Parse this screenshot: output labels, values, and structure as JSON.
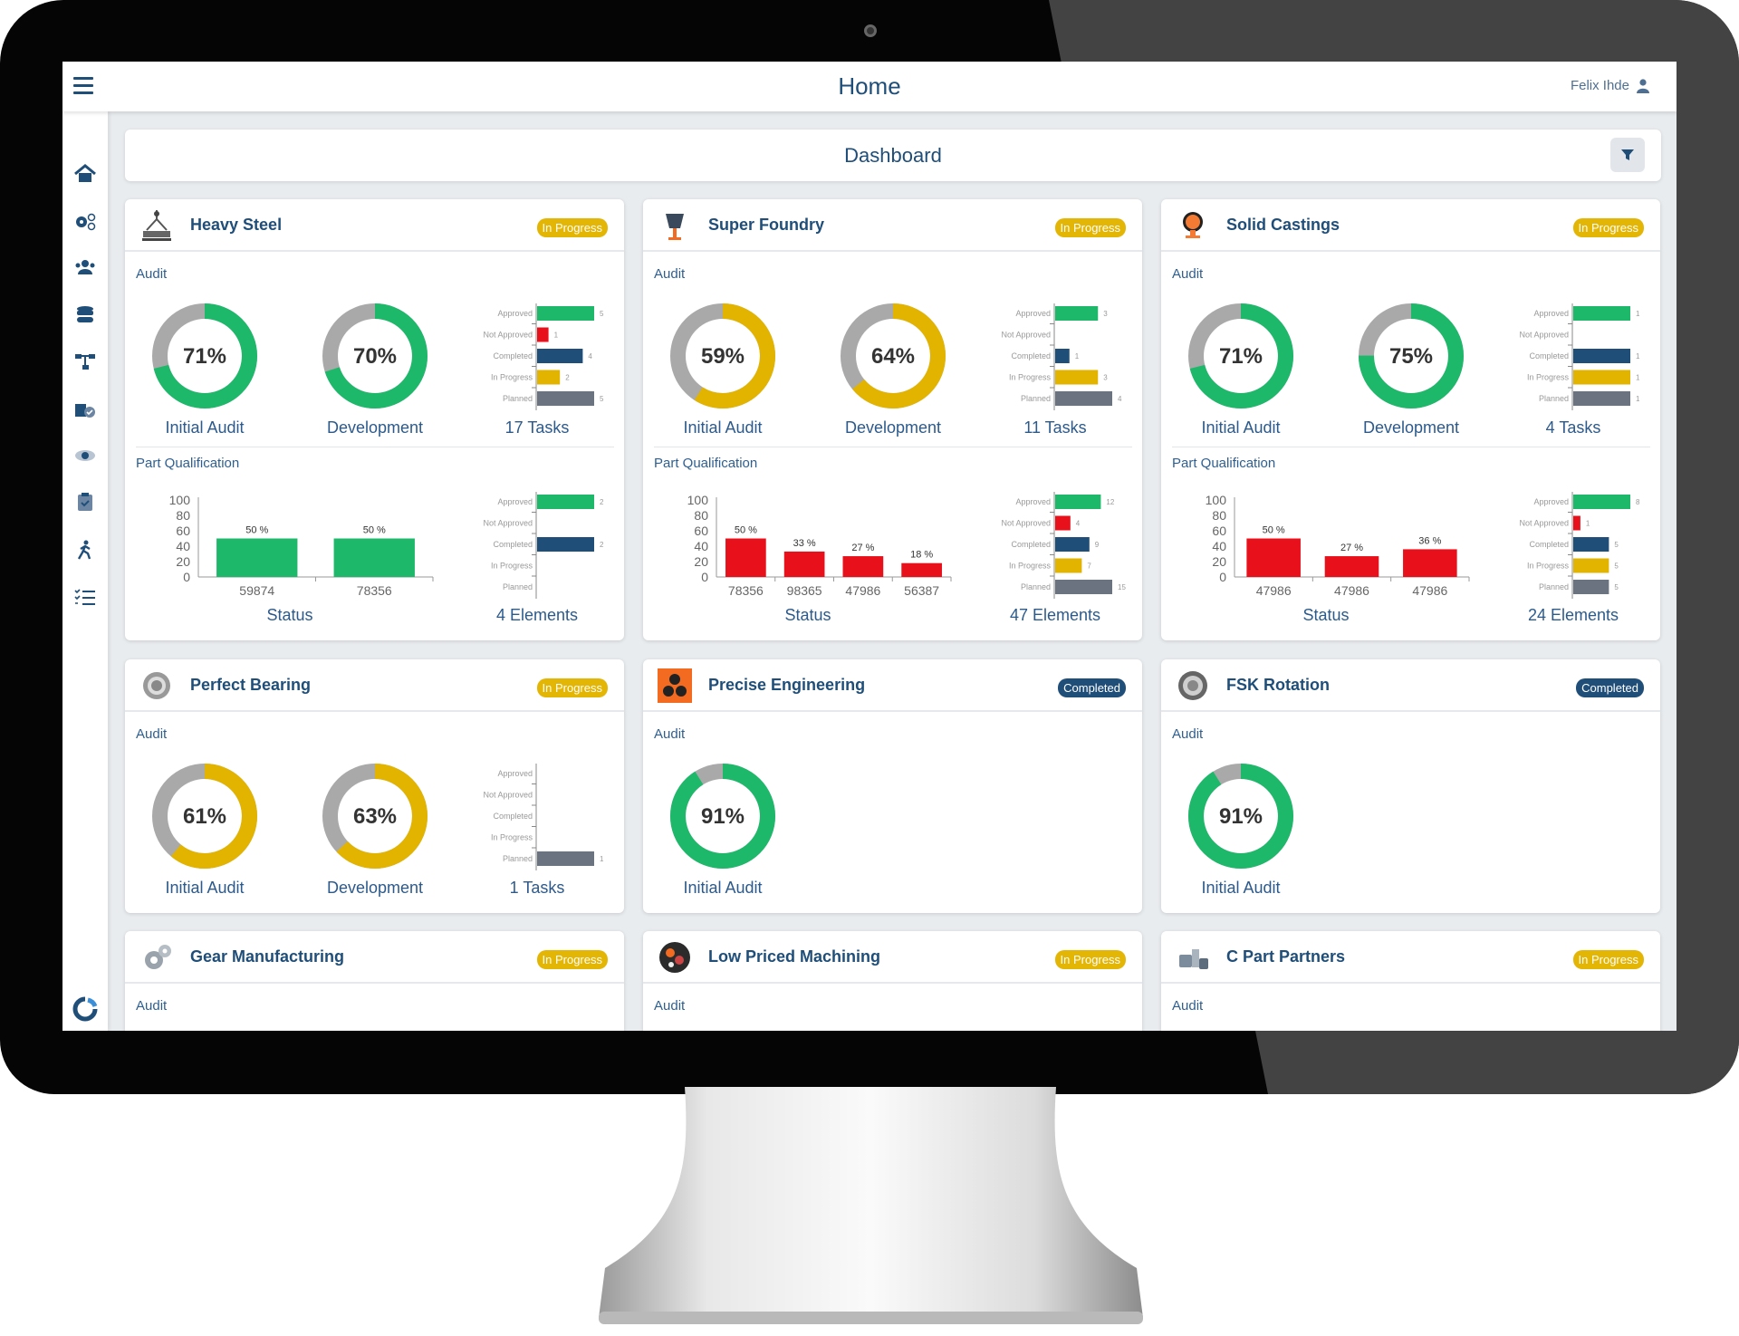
{
  "header": {
    "title": "Home",
    "user_name": "Felix Ihde",
    "menu_icon": "hamburger-icon",
    "user_icon": "user-icon"
  },
  "sidebar": {
    "items": [
      {
        "icon": "home-icon"
      },
      {
        "icon": "settings-gears-icon"
      },
      {
        "icon": "users-icon"
      },
      {
        "icon": "database-icon"
      },
      {
        "icon": "hierarchy-icon"
      },
      {
        "icon": "approved-parts-icon"
      },
      {
        "icon": "eye-icon"
      },
      {
        "icon": "clipboard-check-icon"
      },
      {
        "icon": "person-walking-icon"
      },
      {
        "icon": "checklist-icon"
      }
    ],
    "logo_icon": "app-logo-icon"
  },
  "dashboard": {
    "title": "Dashboard",
    "filter_icon": "filter-icon"
  },
  "colors": {
    "green": "#1db86a",
    "yellow": "#e2b400",
    "red": "#e8101a",
    "navy": "#1f4e79",
    "gray": "#6b7380",
    "track": "#a9a9a9",
    "in_progress_badge": "#e3b505",
    "completed_badge": "#1f4e79"
  },
  "task_categories": [
    "Approved",
    "Not Approved",
    "Completed",
    "In Progress",
    "Planned"
  ],
  "cards": [
    {
      "title": "Heavy Steel",
      "icon": "crane-icon",
      "status": "In Progress",
      "audit_label": "Audit",
      "donuts": [
        {
          "label": "Initial Audit",
          "percent": 71,
          "color": "green"
        },
        {
          "label": "Development",
          "percent": 70,
          "color": "green"
        }
      ],
      "tasks": {
        "label": "17 Tasks",
        "values": [
          5,
          1,
          4,
          2,
          5
        ]
      },
      "part_qualification": {
        "label": "Part Qualification",
        "status_label": "Status",
        "bar_color": "green",
        "y_ticks": [
          100,
          80,
          60,
          40,
          20,
          0
        ],
        "bars": [
          {
            "category": "59874",
            "value": 50
          },
          {
            "category": "78356",
            "value": 50
          }
        ],
        "elements": {
          "label": "4 Elements",
          "values": [
            2,
            0,
            2,
            0,
            0
          ]
        }
      }
    },
    {
      "title": "Super Foundry",
      "icon": "foundry-crucible-icon",
      "status": "In Progress",
      "audit_label": "Audit",
      "donuts": [
        {
          "label": "Initial Audit",
          "percent": 59,
          "color": "yellow"
        },
        {
          "label": "Development",
          "percent": 64,
          "color": "yellow"
        }
      ],
      "tasks": {
        "label": "11 Tasks",
        "values": [
          3,
          0,
          1,
          3,
          4
        ]
      },
      "part_qualification": {
        "label": "Part Qualification",
        "status_label": "Status",
        "bar_color": "red",
        "y_ticks": [
          100,
          80,
          60,
          40,
          20,
          0
        ],
        "bars": [
          {
            "category": "78356",
            "value": 50
          },
          {
            "category": "98365",
            "value": 33
          },
          {
            "category": "47986",
            "value": 27
          },
          {
            "category": "56387",
            "value": 18
          }
        ],
        "elements": {
          "label": "47 Elements",
          "values": [
            12,
            4,
            9,
            7,
            15
          ]
        }
      }
    },
    {
      "title": "Solid Castings",
      "icon": "casting-ladle-icon",
      "status": "In Progress",
      "audit_label": "Audit",
      "donuts": [
        {
          "label": "Initial Audit",
          "percent": 71,
          "color": "green"
        },
        {
          "label": "Development",
          "percent": 75,
          "color": "green"
        }
      ],
      "tasks": {
        "label": "4 Tasks",
        "values": [
          1,
          0,
          1,
          1,
          1
        ]
      },
      "part_qualification": {
        "label": "Part Qualification",
        "status_label": "Status",
        "bar_color": "red",
        "y_ticks": [
          100,
          80,
          60,
          40,
          20,
          0
        ],
        "bars": [
          {
            "category": "47986",
            "value": 50
          },
          {
            "category": "47986",
            "value": 27
          },
          {
            "category": "47986",
            "value": 36
          }
        ],
        "elements": {
          "label": "24 Elements",
          "values": [
            8,
            1,
            5,
            5,
            5
          ]
        }
      }
    },
    {
      "title": "Perfect Bearing",
      "icon": "bearing-icon",
      "status": "In Progress",
      "audit_label": "Audit",
      "donuts": [
        {
          "label": "Initial Audit",
          "percent": 61,
          "color": "yellow"
        },
        {
          "label": "Development",
          "percent": 63,
          "color": "yellow"
        }
      ],
      "tasks": {
        "label": "1 Tasks",
        "values": [
          0,
          0,
          0,
          0,
          1
        ]
      }
    },
    {
      "title": "Precise Engineering",
      "icon": "gears-orange-icon",
      "status": "Completed",
      "audit_label": "Audit",
      "donuts": [
        {
          "label": "Initial Audit",
          "percent": 91,
          "color": "green"
        }
      ]
    },
    {
      "title": "FSK Rotation",
      "icon": "rotation-ring-icon",
      "status": "Completed",
      "audit_label": "Audit",
      "donuts": [
        {
          "label": "Initial Audit",
          "percent": 91,
          "color": "green"
        }
      ]
    },
    {
      "title": "Gear Manufacturing",
      "icon": "gear-icon",
      "status": "In Progress",
      "audit_label": "Audit"
    },
    {
      "title": "Low Priced Machining",
      "icon": "machining-icon",
      "status": "In Progress",
      "audit_label": "Audit"
    },
    {
      "title": "C Part Partners",
      "icon": "bolts-icon",
      "status": "In Progress",
      "audit_label": "Audit"
    }
  ]
}
